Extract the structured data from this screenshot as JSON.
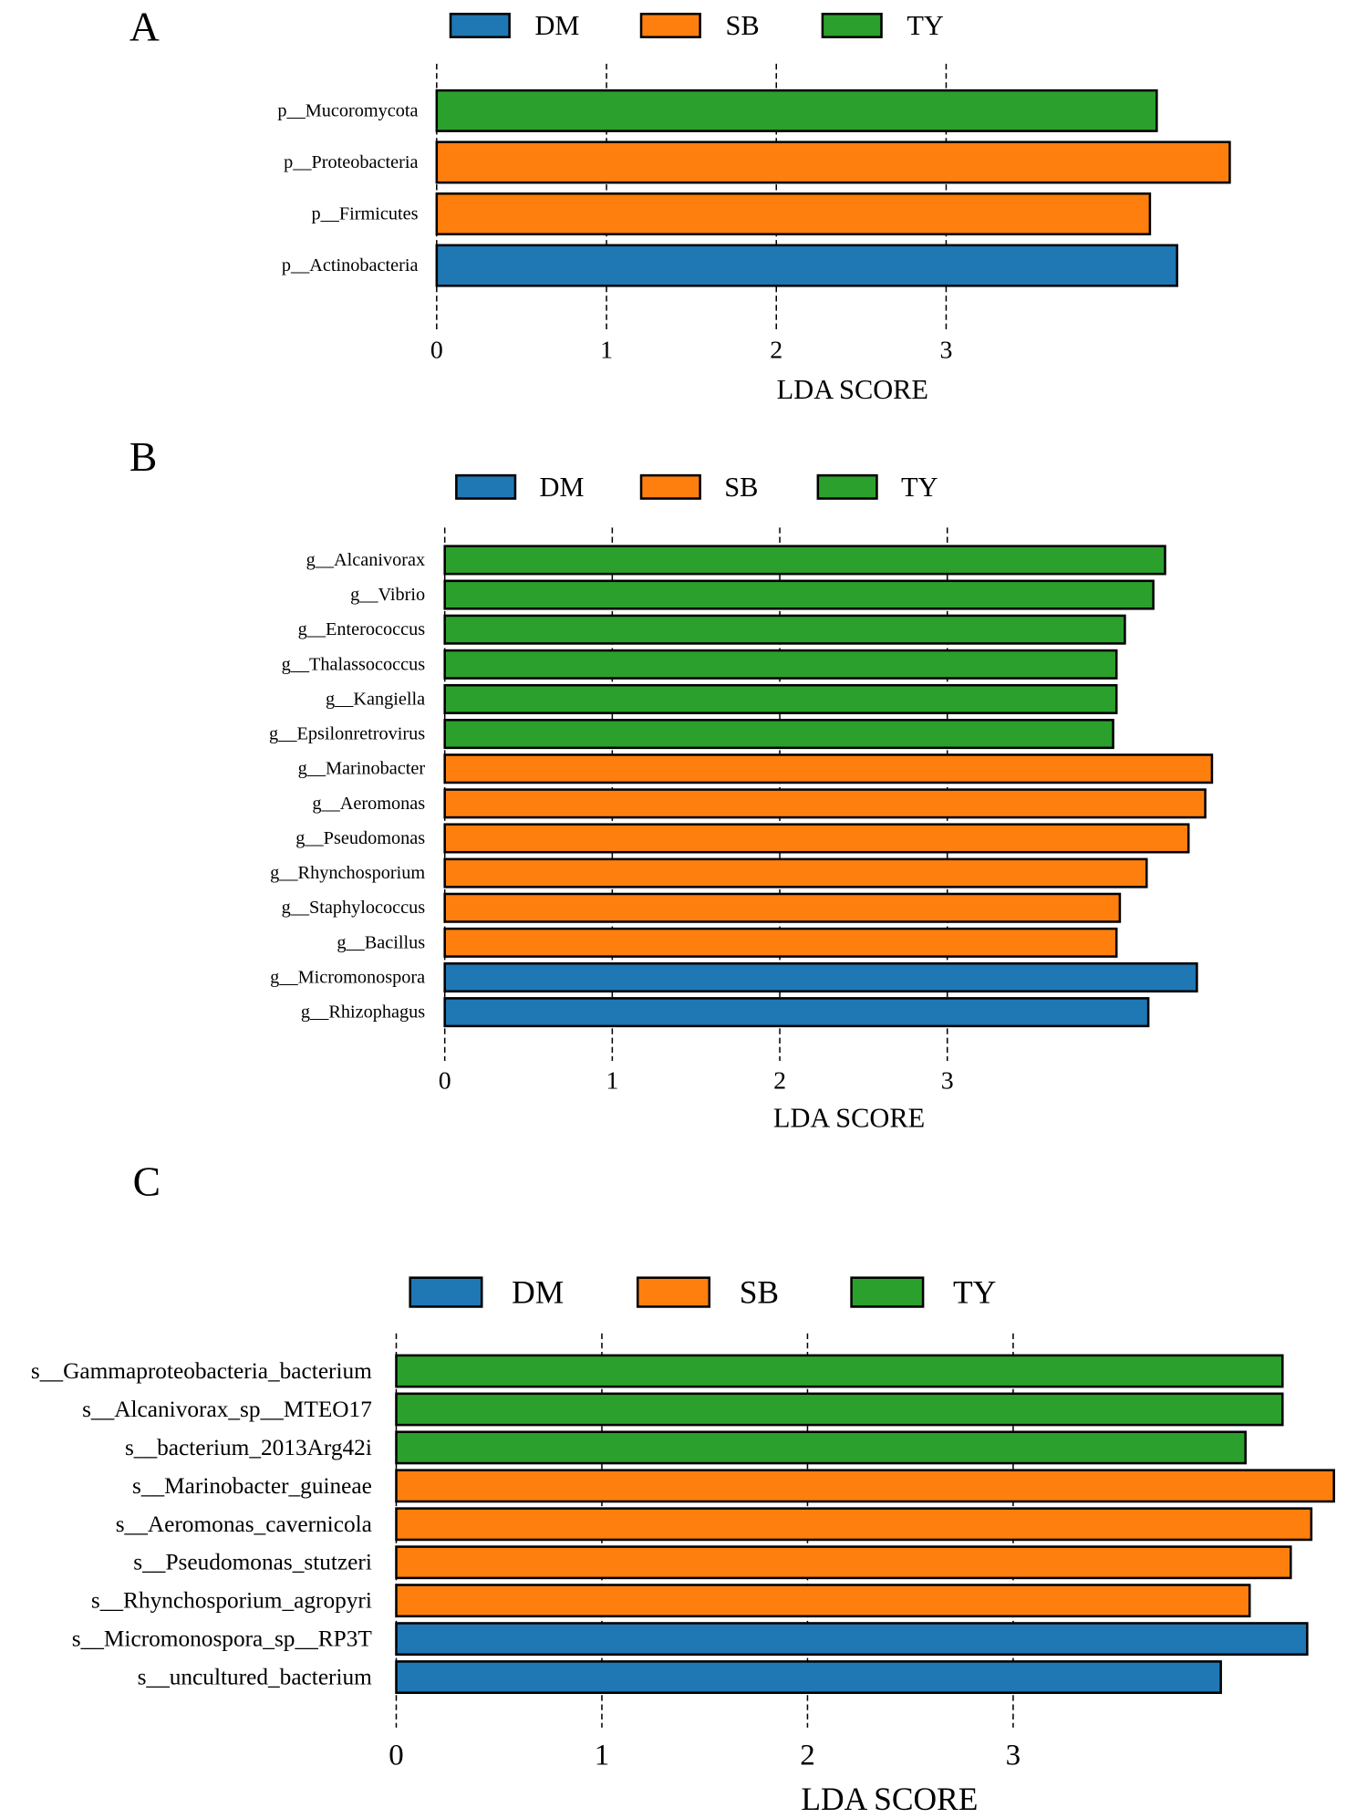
{
  "chart_data": [
    {
      "panel_label": "A",
      "type": "bar",
      "orientation": "horizontal",
      "series": [
        {
          "name": "DM",
          "color": "#1f77b4"
        },
        {
          "name": "SB",
          "color": "#ff7f0e"
        },
        {
          "name": "TY",
          "color": "#2ca02c"
        }
      ],
      "categories": [
        "p__Mucoromycota",
        "p__Proteobacteria",
        "p__Firmicutes",
        "p__Actinobacteria"
      ],
      "values": [
        4.24,
        4.67,
        4.2,
        4.36
      ],
      "groups": [
        "TY",
        "SB",
        "SB",
        "DM"
      ],
      "xticks": [
        0,
        1,
        2,
        3
      ],
      "xlabel": "LDA SCORE",
      "grid": "dashed vertical at ticks"
    },
    {
      "panel_label": "B",
      "type": "bar",
      "orientation": "horizontal",
      "series": [
        {
          "name": "DM",
          "color": "#1f77b4"
        },
        {
          "name": "SB",
          "color": "#ff7f0e"
        },
        {
          "name": "TY",
          "color": "#2ca02c"
        }
      ],
      "categories": [
        "g__Alcanivorax",
        "g__Vibrio",
        "g__Enterococcus",
        "g__Thalassococcus",
        "g__Kangiella",
        "g__Epsilonretrovirus",
        "g__Marinobacter",
        "g__Aeromonas",
        "g__Pseudomonas",
        "g__Rhynchosporium",
        "g__Staphylococcus",
        "g__Bacillus",
        "g__Micromonospora",
        "g__Rhizophagus"
      ],
      "values": [
        4.3,
        4.23,
        4.06,
        4.01,
        4.01,
        3.99,
        4.58,
        4.54,
        4.44,
        4.19,
        4.03,
        4.01,
        4.49,
        4.2
      ],
      "groups": [
        "TY",
        "TY",
        "TY",
        "TY",
        "TY",
        "TY",
        "SB",
        "SB",
        "SB",
        "SB",
        "SB",
        "SB",
        "DM",
        "DM"
      ],
      "xticks": [
        0,
        1,
        2,
        3
      ],
      "xlabel": "LDA SCORE",
      "grid": "dashed vertical at ticks"
    },
    {
      "panel_label": "C",
      "type": "bar",
      "orientation": "horizontal",
      "series": [
        {
          "name": "DM",
          "color": "#1f77b4"
        },
        {
          "name": "SB",
          "color": "#ff7f0e"
        },
        {
          "name": "TY",
          "color": "#2ca02c"
        }
      ],
      "categories": [
        "s__Gammaproteobacteria_bacterium",
        "s__Alcanivorax_sp__MTEO17",
        "s__bacterium_2013Arg42i",
        "s__Marinobacter_guineae",
        "s__Aeromonas_cavernicola",
        "s__Pseudomonas_stutzeri",
        "s__Rhynchosporium_agropyri",
        "s__Micromonospora_sp__RP3T",
        "s__uncultured_bacterium"
      ],
      "values": [
        4.31,
        4.31,
        4.13,
        4.56,
        4.45,
        4.35,
        4.15,
        4.43,
        4.01
      ],
      "groups": [
        "TY",
        "TY",
        "TY",
        "SB",
        "SB",
        "SB",
        "SB",
        "DM",
        "DM"
      ],
      "xticks": [
        0,
        1,
        2,
        3
      ],
      "xlabel": "LDA SCORE",
      "grid": "dashed vertical at ticks"
    }
  ]
}
